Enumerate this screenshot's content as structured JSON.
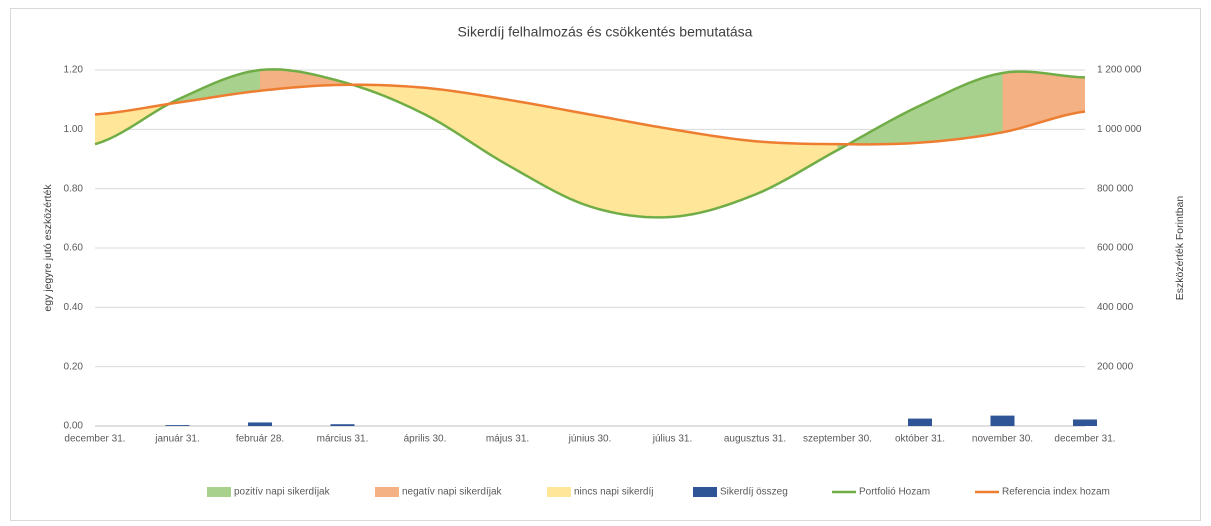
{
  "chart_data": {
    "type": "area-line",
    "title": "Sikerdíj felhalmozás és csökkentés bemutatása",
    "ylabel": "egy jegyre jutó eszközérték",
    "y2label": "Eszközérték Forintban",
    "categories": [
      "december 31.",
      "január 31.",
      "február 28.",
      "március 31.",
      "április 30.",
      "május 31.",
      "június 30.",
      "július 31.",
      "augusztus 31.",
      "szeptember 30.",
      "október 31.",
      "november 30.",
      "december 31."
    ],
    "ylim": [
      0,
      1.2
    ],
    "yticks": [
      {
        "value": 0,
        "label": "0.00"
      },
      {
        "value": 0.2,
        "label": "0.20"
      },
      {
        "value": 0.4,
        "label": "0.40"
      },
      {
        "value": 0.6,
        "label": "0.60"
      },
      {
        "value": 0.8,
        "label": "0.80"
      },
      {
        "value": 1,
        "label": "1.00"
      },
      {
        "value": 1.2,
        "label": "1.20"
      }
    ],
    "y2lim": [
      0,
      1200000
    ],
    "y2ticks": [
      {
        "value": 200000,
        "label": "200 000"
      },
      {
        "value": 400000,
        "label": "400 000"
      },
      {
        "value": 600000,
        "label": "600 000"
      },
      {
        "value": 800000,
        "label": "800 000"
      },
      {
        "value": 1000000,
        "label": "1 000 000"
      },
      {
        "value": 1200000,
        "label": "1 200 000"
      }
    ],
    "grid": true,
    "legend": "bottom",
    "series": [
      {
        "name": "pozitív napi sikerdíjak",
        "color": "#a9d18e",
        "kind": "area-positive"
      },
      {
        "name": "negatív napi sikerdíjak",
        "color": "#f4b183",
        "kind": "area-negative"
      },
      {
        "name": "nincs napi sikerdíj",
        "color": "#ffe699",
        "kind": "area-none"
      },
      {
        "name": "Sikerdíj összeg",
        "color": "#2f5597",
        "kind": "bar",
        "axis": "y2",
        "values": [
          0,
          3000,
          12000,
          6000,
          0,
          0,
          0,
          0,
          0,
          0,
          25000,
          35000,
          22000
        ]
      },
      {
        "name": "Portfolió Hozam",
        "color": "#70ad47",
        "kind": "line",
        "values": [
          0.95,
          1.1,
          1.2,
          1.16,
          1.05,
          0.88,
          0.74,
          0.705,
          0.78,
          0.93,
          1.08,
          1.19,
          1.175
        ]
      },
      {
        "name": "Referencia index hozam",
        "color": "#ed7d31",
        "kind": "line",
        "values": [
          1.05,
          1.09,
          1.13,
          1.15,
          1.14,
          1.1,
          1.05,
          1.0,
          0.96,
          0.95,
          0.955,
          0.99,
          1.06
        ]
      }
    ]
  }
}
